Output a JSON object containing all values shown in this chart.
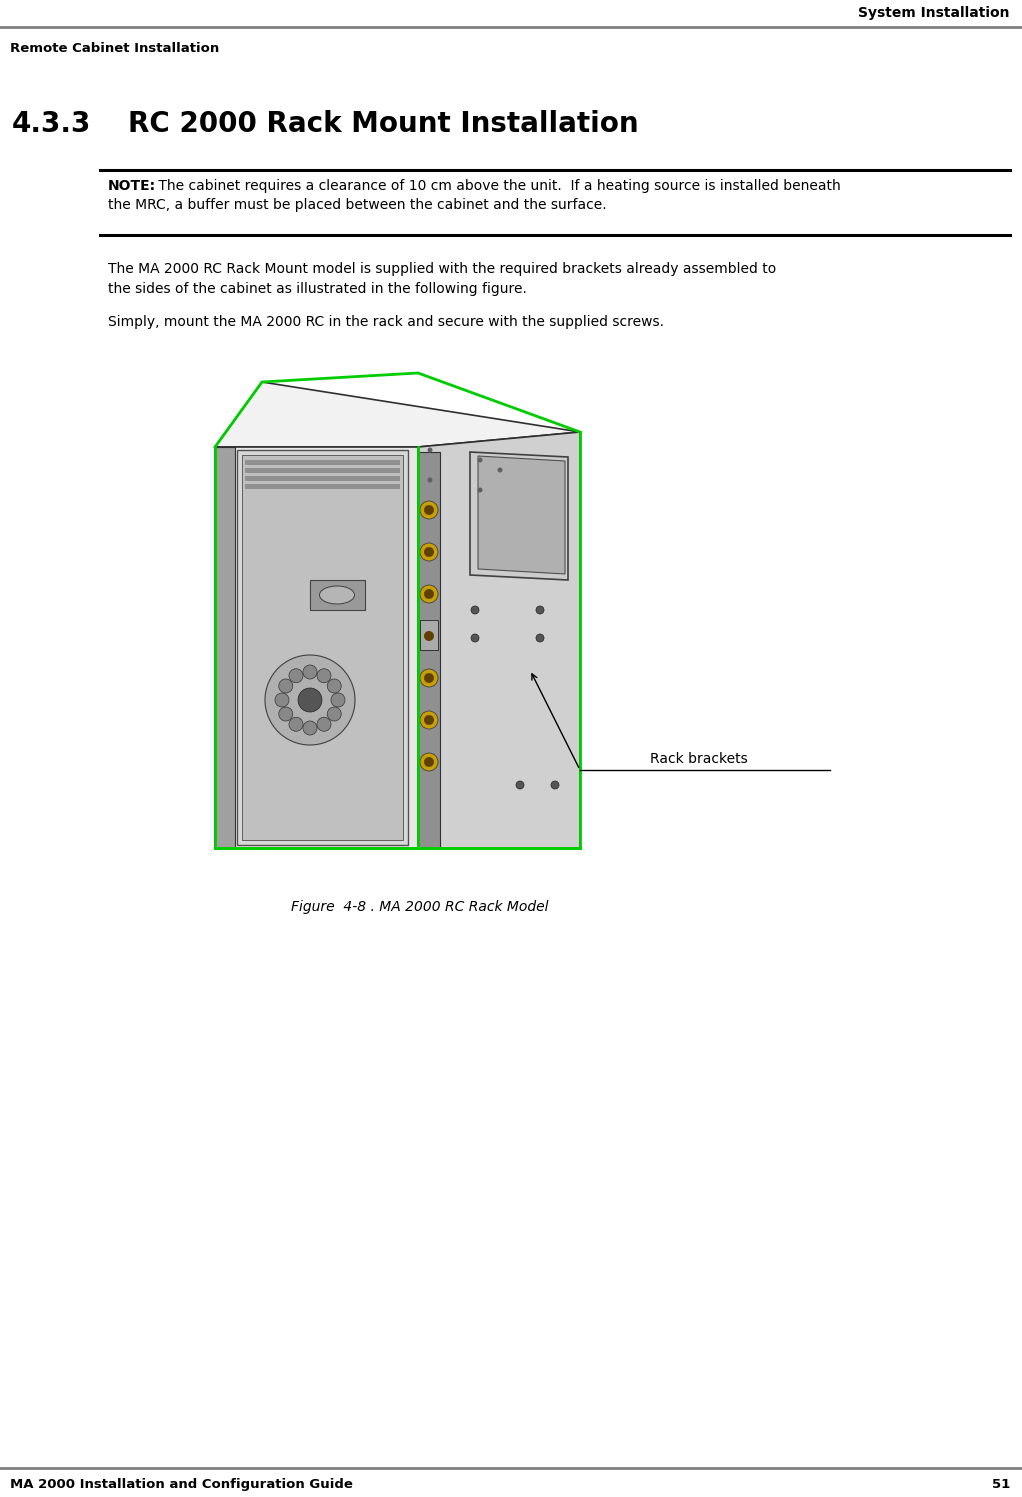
{
  "bg_color": "#ffffff",
  "header_right_text": "System Installation",
  "header_left_text": "Remote Cabinet Installation",
  "header_line_color": "#808080",
  "footer_left_text": "MA 2000 Installation and Configuration Guide",
  "footer_right_text": "51",
  "footer_line_color": "#808080",
  "section_number": "4.3.3",
  "section_title": "RC 2000 Rack Mount Installation",
  "note_label": "NOTE:",
  "note_line1": " The cabinet requires a clearance of 10 cm above the unit.  If a heating source is installed beneath",
  "note_line2": "the MRC, a buffer must be placed between the cabinet and the surface.",
  "para1_line1": "The MA 2000 RC Rack Mount model is supplied with the required brackets already assembled to",
  "para1_line2": "the sides of the cabinet as illustrated in the following figure.",
  "para2": "Simply, mount the MA 2000 RC in the rack and secure with the supplied screws.",
  "figure_caption": "Figure  4-8 . MA 2000 RC Rack Model",
  "rack_label": "Rack brackets",
  "text_color": "#000000",
  "note_line_color": "#000000",
  "green_color": "#00cc00",
  "dark_gray": "#303030",
  "med_gray": "#808080",
  "light_gray": "#c8c8c8",
  "lighter_gray": "#e0e0e0",
  "white_gray": "#f0f0f0"
}
